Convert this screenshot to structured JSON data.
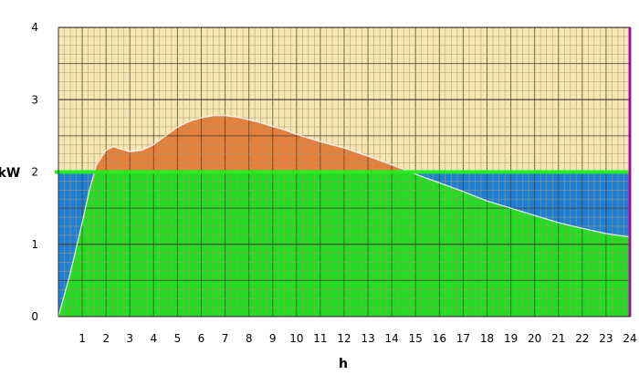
{
  "chart_data": {
    "type": "area",
    "xlabel": "h",
    "ylabel": "kW",
    "xlim": [
      0,
      24
    ],
    "ylim": [
      0,
      4
    ],
    "x_ticks": [
      "1",
      "2",
      "3",
      "4",
      "5",
      "6",
      "7",
      "8",
      "9",
      "10",
      "11",
      "12",
      "13",
      "14",
      "15",
      "16",
      "17",
      "18",
      "19",
      "20",
      "21",
      "22",
      "23",
      "24"
    ],
    "y_ticks": [
      "0",
      "1",
      "2",
      "3",
      "4"
    ],
    "grid": true,
    "threshold": 2,
    "series": [
      {
        "values": [
          [
            0,
            0
          ],
          [
            0.5,
            0.6
          ],
          [
            1,
            1.3
          ],
          [
            1.3,
            1.75
          ],
          [
            1.6,
            2.1
          ],
          [
            2,
            2.3
          ],
          [
            2.3,
            2.35
          ],
          [
            2.6,
            2.32
          ],
          [
            3,
            2.28
          ],
          [
            3.5,
            2.3
          ],
          [
            4,
            2.38
          ],
          [
            4.5,
            2.5
          ],
          [
            5,
            2.62
          ],
          [
            5.5,
            2.7
          ],
          [
            6,
            2.75
          ],
          [
            6.5,
            2.78
          ],
          [
            7,
            2.78
          ],
          [
            7.5,
            2.76
          ],
          [
            8,
            2.72
          ],
          [
            8.5,
            2.68
          ],
          [
            9,
            2.63
          ],
          [
            9.5,
            2.58
          ],
          [
            10,
            2.52
          ],
          [
            11,
            2.42
          ],
          [
            12,
            2.33
          ],
          [
            13,
            2.22
          ],
          [
            14,
            2.1
          ],
          [
            15,
            1.97
          ],
          [
            16,
            1.85
          ],
          [
            17,
            1.73
          ],
          [
            18,
            1.6
          ],
          [
            19,
            1.5
          ],
          [
            20,
            1.4
          ],
          [
            21,
            1.3
          ],
          [
            22,
            1.22
          ],
          [
            23,
            1.15
          ],
          [
            24,
            1.1
          ]
        ]
      }
    ],
    "colors": {
      "background": "#f6e6b4",
      "below_threshold": "#1f7fd4",
      "self_consumed": "#22dd22",
      "excess": "#e67e3c",
      "threshold_line": "#22ee22",
      "end_line": "#e000e0",
      "grid_minor": "#a89a6e",
      "grid_major": "#4a4030",
      "curve_edge": "#ffffff"
    }
  }
}
